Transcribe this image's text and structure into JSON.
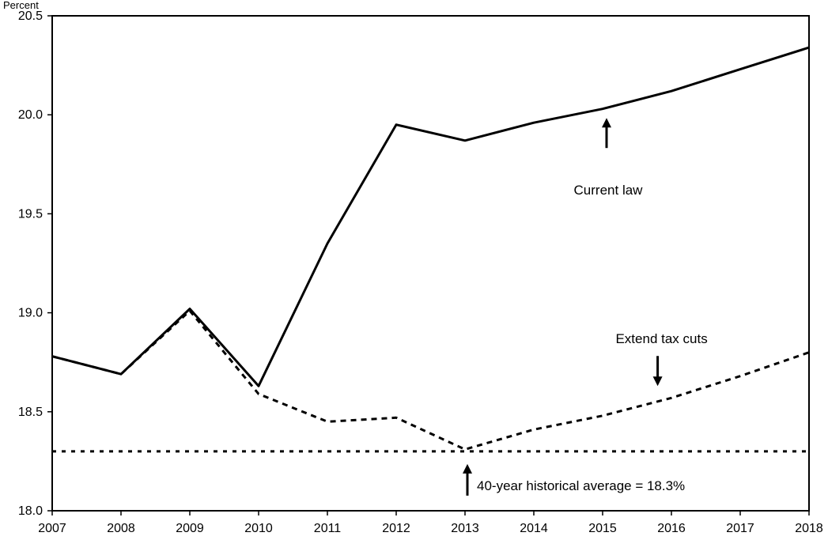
{
  "chart_data": {
    "type": "line",
    "unit_label": "Percent",
    "x": [
      2007,
      2008,
      2009,
      2010,
      2011,
      2012,
      2013,
      2014,
      2015,
      2016,
      2017,
      2018
    ],
    "x_tick_labels": [
      "2007",
      "2008",
      "2009",
      "2010",
      "2011",
      "2012",
      "2013",
      "2014",
      "2015",
      "2016",
      "2017",
      "2018"
    ],
    "ylim": [
      18.0,
      20.5
    ],
    "y_ticks": [
      18.0,
      18.5,
      19.0,
      19.5,
      20.0,
      20.5
    ],
    "y_tick_labels": [
      "18.0",
      "18.5",
      "19.0",
      "19.5",
      "20.0",
      "20.5"
    ],
    "grid": false,
    "series": [
      {
        "name": "Current law",
        "style": "solid",
        "color": "#000000",
        "values": [
          18.78,
          18.69,
          19.02,
          18.63,
          19.35,
          19.95,
          19.87,
          19.96,
          20.03,
          20.12,
          20.23,
          20.34
        ]
      },
      {
        "name": "Extend tax cuts",
        "style": "dashed",
        "color": "#000000",
        "values": [
          18.78,
          18.69,
          19.01,
          18.59,
          18.45,
          18.47,
          18.31,
          18.41,
          18.48,
          18.57,
          18.68,
          18.8
        ]
      },
      {
        "name": "40-year historical average = 18.3%",
        "style": "dotted",
        "color": "#000000",
        "values": [
          18.3,
          18.3,
          18.3,
          18.3,
          18.3,
          18.3,
          18.3,
          18.3,
          18.3,
          18.3,
          18.3,
          18.3
        ]
      }
    ],
    "annotations": [
      {
        "text": "Current law",
        "arrow": "up",
        "anchor_x": 2015.0,
        "anchor_y": 20.0
      },
      {
        "text": "Extend tax cuts",
        "arrow": "down",
        "anchor_x": 2015.8,
        "anchor_y": 18.63
      },
      {
        "text": "40-year historical average = 18.3%",
        "arrow": "up",
        "anchor_x": 2013.0,
        "anchor_y": 18.3
      }
    ]
  }
}
